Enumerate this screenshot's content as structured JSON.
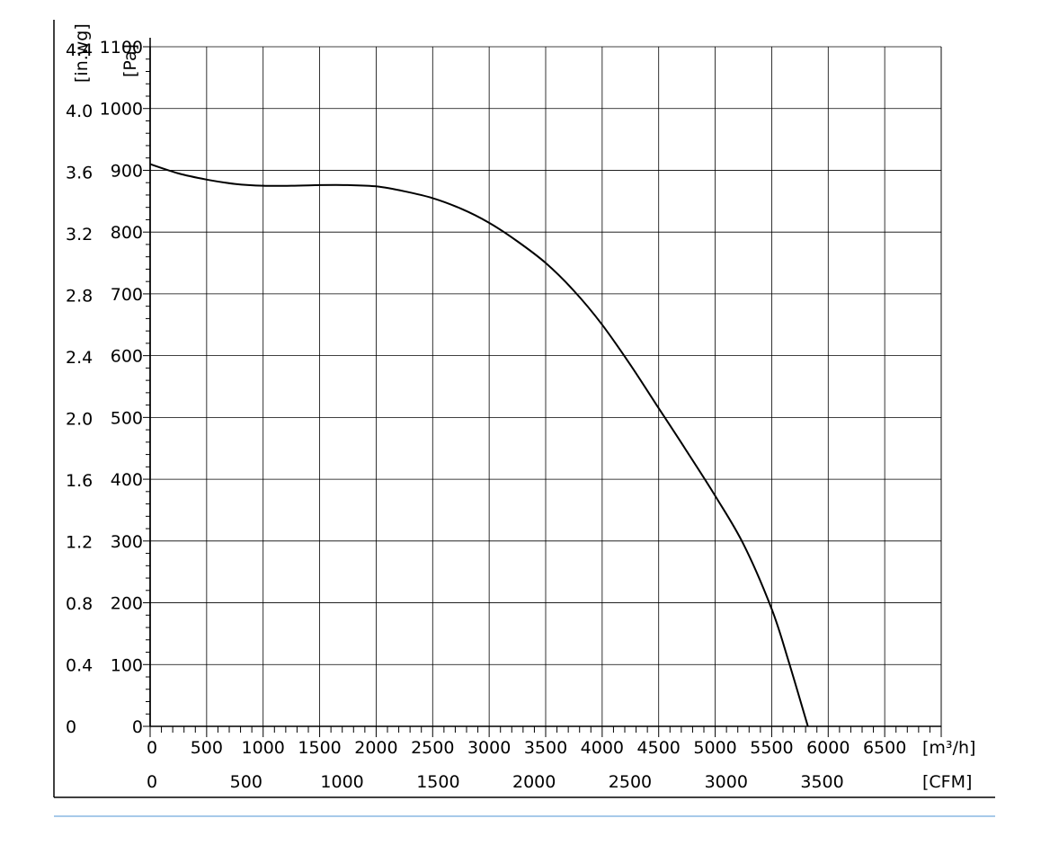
{
  "chart_data": {
    "type": "line",
    "title": "",
    "xlabel_primary": "[m³/h]",
    "xlabel_secondary": "[CFM]",
    "ylabel_primary": "[Pa]",
    "ylabel_secondary": "[in.wg]",
    "xlim": [
      0,
      7000
    ],
    "ylim": [
      0,
      1100
    ],
    "grid": true,
    "x_ticks": [
      "0",
      "500",
      "1000",
      "1500",
      "2000",
      "2500",
      "3000",
      "3500",
      "4000",
      "4500",
      "5000",
      "5500",
      "6000",
      "6500"
    ],
    "x_ticks_cfm": [
      {
        "value": 0,
        "label": "0"
      },
      {
        "value": 500,
        "label": "500"
      },
      {
        "value": 1000,
        "label": "1000"
      },
      {
        "value": 1500,
        "label": "1500"
      },
      {
        "value": 2000,
        "label": "2000"
      },
      {
        "value": 2500,
        "label": "2500"
      },
      {
        "value": 3000,
        "label": "3000"
      },
      {
        "value": 3500,
        "label": "3500"
      }
    ],
    "y_ticks_pa": [
      {
        "value": 0,
        "label": "0"
      },
      {
        "value": 100,
        "label": "100"
      },
      {
        "value": 200,
        "label": "200"
      },
      {
        "value": 300,
        "label": "300"
      },
      {
        "value": 400,
        "label": "400"
      },
      {
        "value": 500,
        "label": "500"
      },
      {
        "value": 600,
        "label": "600"
      },
      {
        "value": 700,
        "label": "700"
      },
      {
        "value": 800,
        "label": "800"
      },
      {
        "value": 900,
        "label": "900"
      },
      {
        "value": 1000,
        "label": "1000"
      },
      {
        "value": 1100,
        "label": "1100"
      }
    ],
    "y_ticks_inwg": [
      {
        "value": 0,
        "label": "0"
      },
      {
        "value": 0.4,
        "label": "0.4"
      },
      {
        "value": 0.8,
        "label": "0.8"
      },
      {
        "value": 1.2,
        "label": "1.2"
      },
      {
        "value": 1.6,
        "label": "1.6"
      },
      {
        "value": 2.0,
        "label": "2.0"
      },
      {
        "value": 2.4,
        "label": "2.4"
      },
      {
        "value": 2.8,
        "label": "2.8"
      },
      {
        "value": 3.2,
        "label": "3.2"
      },
      {
        "value": 3.6,
        "label": "3.6"
      },
      {
        "value": 4.0,
        "label": "4.0"
      },
      {
        "value": 4.4,
        "label": "4.4"
      }
    ],
    "series": [
      {
        "x": [
          0,
          250,
          500,
          750,
          1000,
          1250,
          1500,
          1750,
          2000,
          2250,
          2500,
          2750,
          3000,
          3250,
          3500,
          3750,
          4000,
          4250,
          4500,
          4750,
          5000,
          5250,
          5500,
          5650,
          5820
        ],
        "y": [
          910,
          895,
          885,
          878,
          875,
          875,
          876,
          876,
          874,
          866,
          855,
          838,
          815,
          785,
          750,
          705,
          650,
          585,
          515,
          445,
          373,
          295,
          190,
          105,
          0
        ]
      }
    ]
  },
  "colors": {
    "axis": "#000000",
    "grid": "#000000",
    "curve": "#000000",
    "footer_rule": "#4f94d4"
  }
}
